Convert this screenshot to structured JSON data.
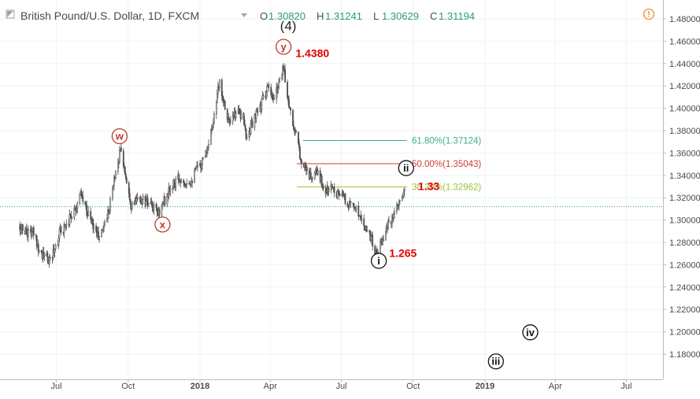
{
  "header": {
    "symbol_title": "British Pound/U.S. Dollar, 1D, FXCM",
    "open_label": "O",
    "open_value": "1.30820",
    "high_label": "H",
    "high_value": "1.31241",
    "low_label": "L",
    "low_value": "1.30629",
    "close_label": "C",
    "close_value": "1.31194",
    "collapse_icon": "square-collapse-icon",
    "dropdown_icon": "chevron-down-icon",
    "alert_icon": "exclamation-circle-icon"
  },
  "colors": {
    "up": "#5b5b5b",
    "wave_red": "#c0392b",
    "fib_618": "#3aaf8f",
    "fib_50": "#d23a3a",
    "fib_382": "#9cc43a",
    "price_line": "#3a9f72",
    "annotation_red": "#e00000"
  },
  "chart_data": {
    "type": "candlestick",
    "title": "British Pound/U.S. Dollar, 1D, FXCM",
    "ylim": [
      1.165,
      1.49
    ],
    "y_ticks": [
      "1.48000",
      "1.46000",
      "1.44000",
      "1.42000",
      "1.40000",
      "1.38000",
      "1.36000",
      "1.34000",
      "1.32000",
      "1.30000",
      "1.28000",
      "1.26000",
      "1.24000",
      "1.22000",
      "1.20000",
      "1.18000"
    ],
    "x_ticks": [
      "Jul",
      "Oct",
      "2018",
      "Apr",
      "Jul",
      "Oct",
      "2019",
      "Apr",
      "Jul"
    ],
    "x_ticks_bold": [
      "2018",
      "2019"
    ],
    "price_path": [
      [
        "2017-05-15",
        1.292
      ],
      [
        "2017-06-01",
        1.288
      ],
      [
        "2017-06-12",
        1.27
      ],
      [
        "2017-06-22",
        1.262
      ],
      [
        "2017-07-05",
        1.288
      ],
      [
        "2017-07-20",
        1.305
      ],
      [
        "2017-08-01",
        1.322
      ],
      [
        "2017-08-14",
        1.3
      ],
      [
        "2017-08-25",
        1.283
      ],
      [
        "2017-09-06",
        1.31
      ],
      [
        "2017-09-15",
        1.345
      ],
      [
        "2017-09-21",
        1.363
      ],
      [
        "2017-10-05",
        1.315
      ],
      [
        "2017-10-20",
        1.318
      ],
      [
        "2017-11-08",
        1.306
      ],
      [
        "2017-11-22",
        1.325
      ],
      [
        "2017-12-05",
        1.337
      ],
      [
        "2017-12-20",
        1.336
      ],
      [
        "2018-01-05",
        1.355
      ],
      [
        "2018-01-15",
        1.38
      ],
      [
        "2018-01-26",
        1.423
      ],
      [
        "2018-02-08",
        1.385
      ],
      [
        "2018-02-20",
        1.4
      ],
      [
        "2018-03-01",
        1.375
      ],
      [
        "2018-03-15",
        1.395
      ],
      [
        "2018-03-28",
        1.418
      ],
      [
        "2018-04-05",
        1.405
      ],
      [
        "2018-04-17",
        1.438
      ],
      [
        "2018-04-27",
        1.395
      ],
      [
        "2018-05-10",
        1.355
      ],
      [
        "2018-05-23",
        1.337
      ],
      [
        "2018-06-01",
        1.343
      ],
      [
        "2018-06-10",
        1.325
      ],
      [
        "2018-06-20",
        1.33
      ],
      [
        "2018-07-05",
        1.318
      ],
      [
        "2018-07-20",
        1.31
      ],
      [
        "2018-08-05",
        1.29
      ],
      [
        "2018-08-15",
        1.268
      ],
      [
        "2018-08-25",
        1.29
      ],
      [
        "2018-09-05",
        1.3
      ],
      [
        "2018-09-15",
        1.318
      ],
      [
        "2018-09-21",
        1.325
      ]
    ],
    "fib_levels": [
      {
        "label": "61.80%(1.37124)",
        "value": 1.37124,
        "color": "#3aaf8f",
        "from": "2018-05-13",
        "to": "2018-09-23"
      },
      {
        "label": "50.00%(1.35043)",
        "value": 1.35043,
        "color": "#d23a3a",
        "from": "2018-05-05",
        "to": "2018-09-23"
      },
      {
        "label": "38.20%(1.32962)",
        "value": 1.32962,
        "color": "#9cc43a",
        "from": "2018-05-05",
        "to": "2018-09-23"
      }
    ],
    "last_price": 1.31194,
    "wave_labels": [
      {
        "text": "w",
        "date": "2017-09-20",
        "price": 1.375,
        "style": "red"
      },
      {
        "text": "x",
        "date": "2017-11-14",
        "price": 1.296,
        "style": "red"
      },
      {
        "text": "y",
        "date": "2018-04-18",
        "price": 1.455,
        "style": "red"
      },
      {
        "text": "(4)",
        "date": "2018-04-24",
        "price": 1.474,
        "style": "plain"
      },
      {
        "text": "i",
        "date": "2018-08-18",
        "price": 1.2635,
        "style": "black"
      },
      {
        "text": "ii",
        "date": "2018-09-22",
        "price": 1.3465,
        "style": "black"
      },
      {
        "text": "iii",
        "date": "2019-01-15",
        "price": 1.1735,
        "style": "black"
      },
      {
        "text": "iv",
        "date": "2019-02-28",
        "price": 1.1995,
        "style": "black"
      }
    ],
    "annotations": [
      {
        "text": "1.4380",
        "date": "2018-05-25",
        "price": 1.4493
      },
      {
        "text": "1.33",
        "date": "2018-10-21",
        "price": 1.3305
      },
      {
        "text": "1.265",
        "date": "2018-09-18",
        "price": 1.2705
      }
    ]
  }
}
